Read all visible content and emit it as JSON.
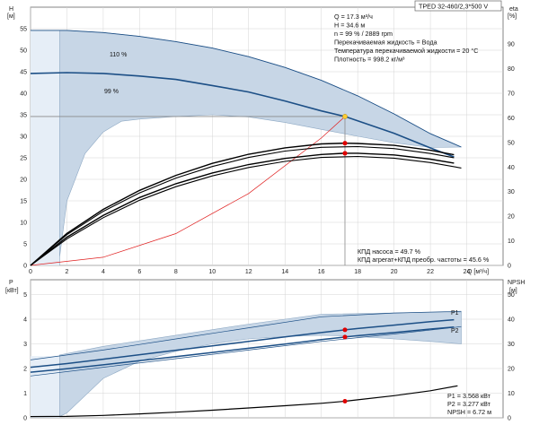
{
  "header": {
    "model": "TPED 32-460/2,3*500 V"
  },
  "colors": {
    "band_fill": "#c7d6e6",
    "band_stroke": "#8ea9c4",
    "flow_fill": "#e6eef7",
    "curve_blue": "#1c4f86",
    "curve_black": "#000000",
    "system_curve": "#e02020",
    "operating_point_top": "#ffcc33",
    "operating_point": "#e00000",
    "grid": "#d4d4d4",
    "crosshair": "#8a8a8a"
  },
  "chart_data": [
    {
      "type": "line",
      "id": "head-efficiency",
      "x_unit": "Q [м³/ч]",
      "xlim": [
        0,
        26
      ],
      "x_ticks": [
        "0",
        "2",
        "4",
        "6",
        "8",
        "10",
        "12",
        "14",
        "16",
        "18",
        "20",
        "22",
        "24"
      ],
      "y_left": {
        "label": "H",
        "unit": "[м]",
        "lim": [
          0,
          60
        ],
        "ticks": [
          "0",
          "5",
          "10",
          "15",
          "20",
          "25",
          "30",
          "35",
          "40",
          "45",
          "50",
          "55"
        ]
      },
      "y_right": {
        "label": "eta",
        "unit": "[%]",
        "lim": [
          0,
          105
        ],
        "ticks": [
          "0",
          "10",
          "20",
          "30",
          "40",
          "50",
          "60",
          "70",
          "80",
          "90"
        ]
      },
      "grid": true,
      "info_lines": [
        "Q = 17.3 м³/ч",
        "H = 34.6 м",
        "n = 99 % / 2889 rpm",
        "Перекачиваемая жидкость = Вода",
        "Температура перекачиваемой жидкости = 20 °C",
        "Плотность = 998.2 кг/м³"
      ],
      "efficiency_lines": [
        "КПД насоса = 49.7 %",
        "КПД агрегат+КПД преобр. частоты = 45.6 %"
      ],
      "series": [
        {
          "name": "110 %",
          "axis": "left",
          "role": "head_max",
          "x": [
            0,
            2,
            4,
            6,
            8,
            10,
            12,
            14,
            16,
            18,
            20,
            22,
            23.7
          ],
          "y": [
            54.6,
            54.6,
            54.1,
            53.2,
            52,
            50.5,
            48.5,
            46,
            43,
            39.4,
            35.2,
            30.6,
            27.5
          ]
        },
        {
          "name": "99 %",
          "axis": "left",
          "role": "head",
          "x": [
            0,
            2,
            4,
            6,
            8,
            10,
            12,
            14,
            16,
            17.3,
            18,
            20,
            22,
            23.3
          ],
          "y": [
            44.6,
            44.8,
            44.6,
            44,
            43.2,
            41.8,
            40.3,
            38.2,
            35.9,
            34.6,
            33.6,
            30.7,
            27.3,
            25.2
          ]
        },
        {
          "name": "",
          "axis": "left",
          "role": "system_curve",
          "x": [
            0,
            4,
            8,
            12,
            16,
            17.3
          ],
          "y": [
            0,
            1.9,
            7.4,
            16.7,
            29.6,
            34.6
          ]
        },
        {
          "name": "",
          "axis": "right",
          "role": "eta_pump_upper",
          "x": [
            0,
            2,
            4,
            6,
            8,
            10,
            12,
            14,
            16,
            17.3,
            18,
            20,
            22,
            23.3
          ],
          "y": [
            0,
            13,
            22.8,
            30.5,
            36.6,
            41.5,
            45.2,
            47.8,
            49.4,
            49.7,
            49.6,
            48.8,
            46.8,
            45
          ]
        },
        {
          "name": "",
          "axis": "right",
          "role": "eta_pump_lower",
          "x": [
            0,
            2,
            4,
            6,
            8,
            10,
            12,
            14,
            16,
            18,
            20,
            22,
            23.3
          ],
          "y": [
            0,
            12.5,
            22,
            29.5,
            35.5,
            40.2,
            43.9,
            46.5,
            48,
            48.3,
            47.5,
            45.5,
            43.8
          ]
        },
        {
          "name": "",
          "axis": "right",
          "role": "eta_total_upper",
          "x": [
            0,
            2,
            4,
            6,
            8,
            10,
            12,
            14,
            16,
            17.3,
            18,
            20,
            22,
            23.3
          ],
          "y": [
            0,
            11.5,
            20.3,
            27.6,
            33.2,
            37.6,
            41,
            43.5,
            45.1,
            45.6,
            45.6,
            44.9,
            43.2,
            41.6
          ]
        },
        {
          "name": "",
          "axis": "right",
          "role": "eta_total_lower",
          "x": [
            0,
            2,
            4,
            6,
            8,
            10,
            12,
            14,
            16,
            18,
            20,
            22,
            23.7
          ],
          "y": [
            0,
            10.8,
            19.4,
            26.5,
            32,
            36.4,
            39.8,
            42.3,
            43.9,
            44.3,
            43.6,
            41.8,
            39.6
          ]
        }
      ],
      "operating_points": [
        {
          "x": 17.3,
          "y": 34.6,
          "axis": "left"
        },
        {
          "x": 17.3,
          "y": 49.7,
          "axis": "right"
        },
        {
          "x": 17.3,
          "y": 45.6,
          "axis": "right"
        }
      ]
    },
    {
      "type": "line",
      "id": "power-npsh",
      "x_unit": "Q [м³/ч]",
      "xlim": [
        0,
        26
      ],
      "y_left": {
        "label": "P",
        "unit": "[кВт]",
        "lim": [
          0,
          5.6
        ],
        "ticks": [
          "0",
          "1",
          "2",
          "3",
          "4",
          "5"
        ]
      },
      "y_right": {
        "label": "NPSH",
        "unit": "[м]",
        "lim": [
          0,
          56
        ],
        "ticks": [
          "0",
          "10",
          "20",
          "30",
          "40",
          "50"
        ]
      },
      "grid": true,
      "value_lines": [
        "P1 = 3.568 кВт",
        "P2 = 3.277 кВт",
        "NPSH = 6.72 м"
      ],
      "series": [
        {
          "name": "P1",
          "axis": "left",
          "role": "p1",
          "x": [
            0,
            2,
            4,
            6,
            8,
            10,
            12,
            14,
            16,
            17.3,
            18,
            20,
            22,
            23.3
          ],
          "y": [
            2.05,
            2.2,
            2.38,
            2.56,
            2.74,
            2.92,
            3.1,
            3.28,
            3.46,
            3.568,
            3.62,
            3.76,
            3.9,
            3.98
          ]
        },
        {
          "name": "P2",
          "axis": "left",
          "role": "p2",
          "x": [
            0,
            2,
            4,
            6,
            8,
            10,
            12,
            14,
            16,
            17.3,
            18,
            20,
            22,
            23.3
          ],
          "y": [
            1.85,
            1.99,
            2.15,
            2.32,
            2.48,
            2.65,
            2.82,
            2.99,
            3.17,
            3.277,
            3.33,
            3.46,
            3.6,
            3.68
          ]
        },
        {
          "name": "",
          "axis": "right",
          "role": "npsh",
          "x": [
            0,
            2,
            4,
            6,
            8,
            10,
            12,
            14,
            16,
            17.3,
            18,
            20,
            22,
            23.5
          ],
          "y": [
            0.5,
            0.6,
            1,
            1.6,
            2.3,
            3.1,
            4,
            4.9,
            5.9,
            6.72,
            7.3,
            9,
            11,
            13
          ]
        }
      ],
      "operating_points": [
        {
          "x": 17.3,
          "y": 3.568,
          "axis": "left"
        },
        {
          "x": 17.3,
          "y": 3.277,
          "axis": "left"
        },
        {
          "x": 17.3,
          "y": 6.72,
          "axis": "right"
        }
      ]
    }
  ]
}
